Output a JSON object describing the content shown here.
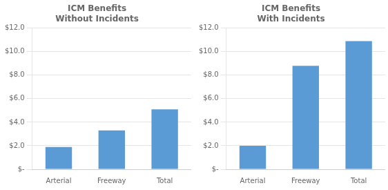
{
  "chart_data": [
    {
      "type": "bar",
      "title": "ICM Benefits\nWithout Incidents",
      "categories": [
        "Arterial",
        "Freeway",
        "Total"
      ],
      "values": [
        1.9,
        3.3,
        5.1
      ],
      "color": "#5B9BD5",
      "ylim": [
        0,
        12
      ],
      "yticks": [
        {
          "value": 0,
          "label": "$-"
        },
        {
          "value": 2,
          "label": "$2.0"
        },
        {
          "value": 4,
          "label": "$4.0"
        },
        {
          "value": 6,
          "label": "$6.0"
        },
        {
          "value": 8,
          "label": "$8.0"
        },
        {
          "value": 10,
          "label": "$10.0"
        },
        {
          "value": 12,
          "label": "$12.0"
        }
      ],
      "grid": true
    },
    {
      "type": "bar",
      "title": "ICM Benefits\nWith Incidents",
      "categories": [
        "Arterial",
        "Freeway",
        "Total"
      ],
      "values": [
        2.0,
        8.8,
        10.9
      ],
      "color": "#5B9BD5",
      "ylim": [
        0,
        12
      ],
      "yticks": [
        {
          "value": 0,
          "label": "$-"
        },
        {
          "value": 2,
          "label": "$2.0"
        },
        {
          "value": 4,
          "label": "$4.0"
        },
        {
          "value": 6,
          "label": "$6.0"
        },
        {
          "value": 8,
          "label": "$8.0"
        },
        {
          "value": 10,
          "label": "$10.0"
        },
        {
          "value": 12,
          "label": "$12.0"
        }
      ],
      "grid": true
    }
  ]
}
